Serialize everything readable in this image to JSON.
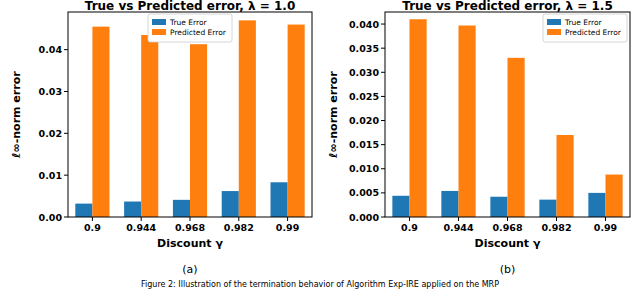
{
  "chart_data": [
    {
      "type": "bar",
      "title": "True vs Predicted error, λ = 1.0",
      "x_label": "Discount γ",
      "y_label": "ℓ∞-norm error",
      "panel_label": "(a)",
      "categories": [
        "0.9",
        "0.944",
        "0.968",
        "0.982",
        "0.99"
      ],
      "series": [
        {
          "name": "True Error",
          "color": "#1f77b4",
          "values": [
            0.0032,
            0.0037,
            0.0041,
            0.0062,
            0.0083
          ]
        },
        {
          "name": "Predicted Error",
          "color": "#ff7f0e",
          "values": [
            0.0455,
            0.0435,
            0.0413,
            0.047,
            0.046
          ]
        }
      ],
      "ylim": [
        0,
        0.049
      ],
      "yticks": [
        {
          "value": 0,
          "label": "0.00"
        },
        {
          "value": 0.01,
          "label": "0.01"
        },
        {
          "value": 0.02,
          "label": "0.02"
        },
        {
          "value": 0.03,
          "label": "0.03"
        },
        {
          "value": 0.04,
          "label": "0.04"
        }
      ],
      "grid": false,
      "legend": "upper center"
    },
    {
      "type": "bar",
      "title": "True vs Predicted error, λ = 1.5",
      "x_label": "Discount γ",
      "y_label": "ℓ∞-norm error",
      "panel_label": "(b)",
      "categories": [
        "0.9",
        "0.944",
        "0.968",
        "0.982",
        "0.99"
      ],
      "series": [
        {
          "name": "True Error",
          "color": "#1f77b4",
          "values": [
            0.0044,
            0.0054,
            0.0042,
            0.0036,
            0.005
          ]
        },
        {
          "name": "Predicted Error",
          "color": "#ff7f0e",
          "values": [
            0.041,
            0.0397,
            0.033,
            0.017,
            0.0088
          ]
        }
      ],
      "ylim": [
        0,
        0.0425
      ],
      "yticks": [
        {
          "value": 0,
          "label": "0.000"
        },
        {
          "value": 0.005,
          "label": "0.005"
        },
        {
          "value": 0.01,
          "label": "0.010"
        },
        {
          "value": 0.015,
          "label": "0.015"
        },
        {
          "value": 0.02,
          "label": "0.020"
        },
        {
          "value": 0.025,
          "label": "0.025"
        },
        {
          "value": 0.03,
          "label": "0.030"
        },
        {
          "value": 0.035,
          "label": "0.035"
        },
        {
          "value": 0.04,
          "label": "0.040"
        }
      ],
      "grid": false,
      "legend": "upper right"
    }
  ],
  "caption": "Figure 2: Illustration of the termination behavior of Algorithm Exp-IRE applied on the MRP"
}
